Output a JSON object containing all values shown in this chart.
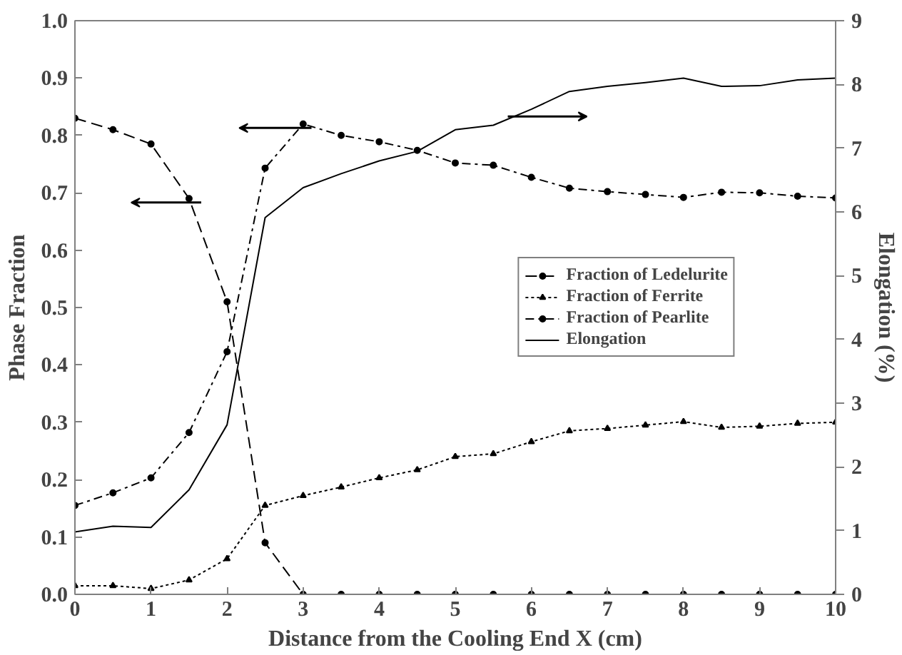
{
  "chart_data": {
    "type": "line",
    "xlabel": "Distance from the Cooling End X (cm)",
    "ylabel": "Phase Fraction",
    "y2label": "Elongation (%)",
    "x": [
      0,
      0.5,
      1,
      1.5,
      2,
      2.5,
      3,
      3.5,
      4,
      4.5,
      5,
      5.5,
      6,
      6.5,
      7,
      7.5,
      8,
      8.5,
      9,
      9.5,
      10
    ],
    "series": [
      {
        "name": "Fraction of Ledelurite",
        "color": "#000000",
        "marker": "circle",
        "line_style": "dashed",
        "values": [
          0.83,
          0.81,
          0.785,
          0.69,
          0.51,
          0.09,
          0,
          0,
          0,
          0,
          0,
          0,
          0,
          0,
          0,
          0,
          0,
          0,
          0,
          0,
          0
        ]
      },
      {
        "name": "Fraction of Ferrite",
        "color": "#000000",
        "marker": "triangle",
        "line_style": "dotted",
        "values": [
          0.015,
          0.015,
          0.01,
          0.025,
          0.062,
          0.155,
          0.172,
          0.187,
          0.203,
          0.217,
          0.24,
          0.245,
          0.266,
          0.285,
          0.289,
          0.295,
          0.301,
          0.291,
          0.293,
          0.298,
          0.3
        ]
      },
      {
        "name": "Fraction of Pearlite",
        "color": "#000000",
        "marker": "circle",
        "line_style": "dashdot",
        "values": [
          0.155,
          0.177,
          0.203,
          0.282,
          0.423,
          0.743,
          0.82,
          0.8,
          0.789,
          0.774,
          0.752,
          0.748,
          0.727,
          0.708,
          0.702,
          0.697,
          0.692,
          0.701,
          0.7,
          0.694,
          0.691
        ]
      },
      {
        "name": "Elongation",
        "color": "#000000",
        "marker": "none",
        "line_style": "solid",
        "axis": "y2",
        "values": [
          0.98,
          1.07,
          1.05,
          1.64,
          2.66,
          5.91,
          6.38,
          6.6,
          6.8,
          6.95,
          7.29,
          7.36,
          7.61,
          7.89,
          7.97,
          8.03,
          8.1,
          7.97,
          7.98,
          8.07,
          8.1
        ]
      }
    ],
    "xlim": [
      0,
      10
    ],
    "xticks": [
      0,
      1,
      2,
      3,
      4,
      5,
      6,
      7,
      8,
      9,
      10
    ],
    "ylim": [
      0,
      1
    ],
    "yticks": [
      {
        "value": 0,
        "label": "0.0"
      },
      0.1,
      0.2,
      0.3,
      0.4,
      0.5,
      0.6,
      0.7,
      0.8,
      0.9,
      {
        "value": 1,
        "label": "1.0"
      }
    ],
    "y2lim": [
      0,
      9
    ],
    "y2ticks": [
      0,
      1,
      2,
      3,
      4,
      5,
      6,
      7,
      8,
      9
    ],
    "grid": false,
    "legend": "right"
  }
}
